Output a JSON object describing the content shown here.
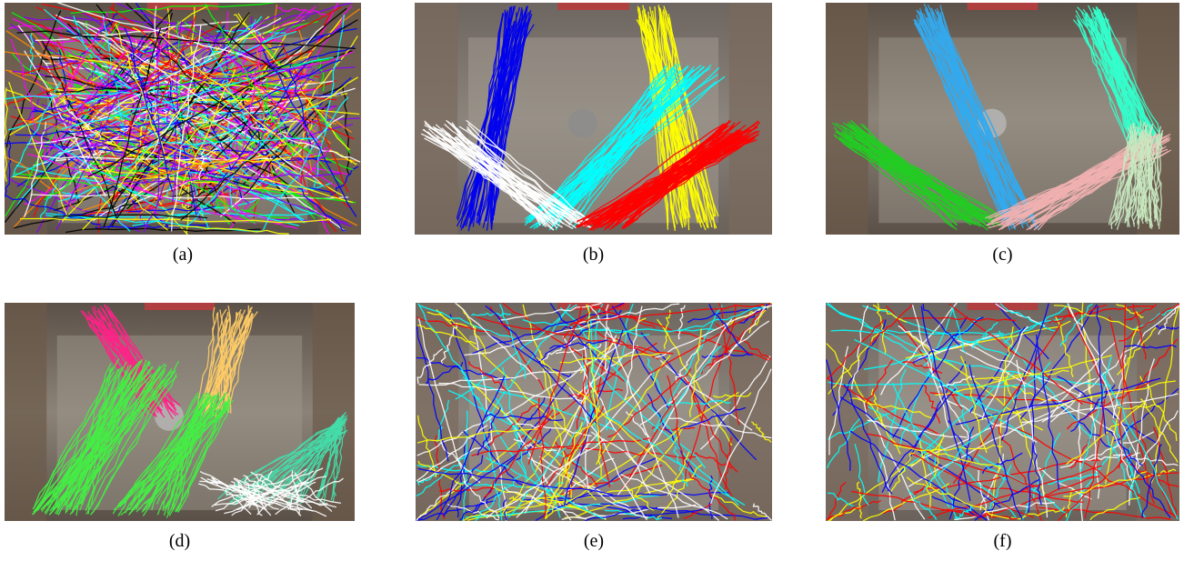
{
  "figure": {
    "panels": [
      {
        "caption": "(a)"
      },
      {
        "caption": "(b)"
      },
      {
        "caption": "(c)"
      },
      {
        "caption": "(d)"
      },
      {
        "caption": "(e)"
      },
      {
        "caption": "(f)"
      }
    ]
  }
}
